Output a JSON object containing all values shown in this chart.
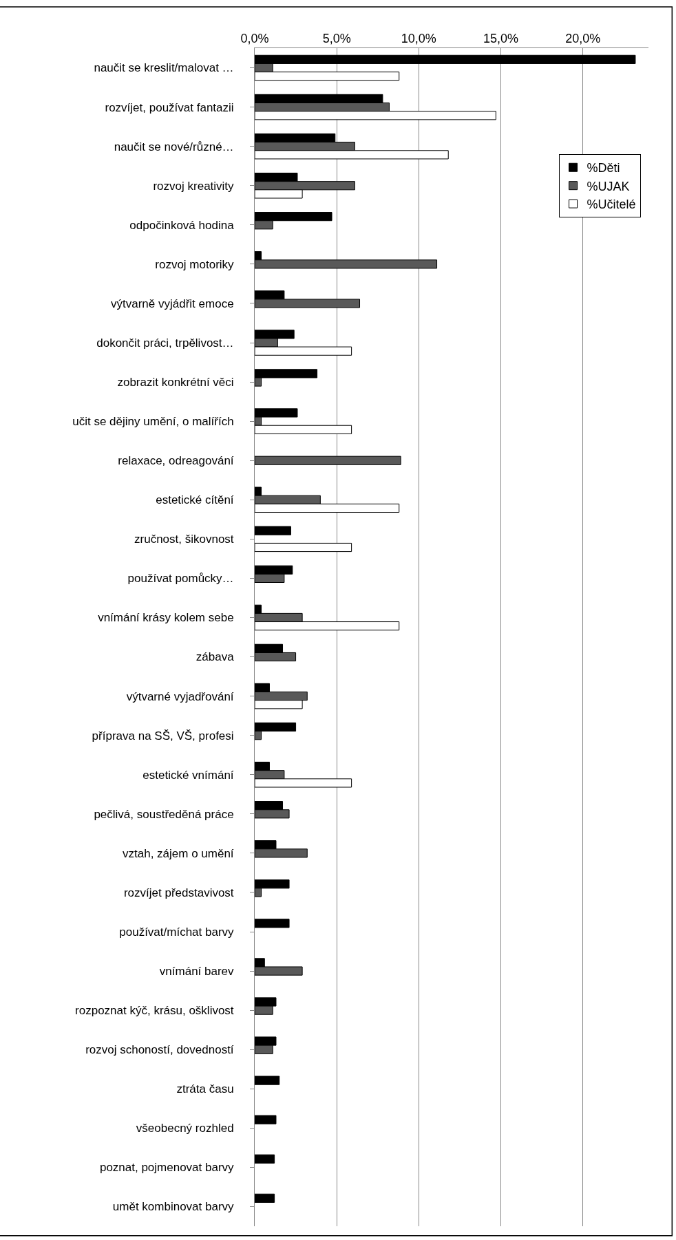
{
  "chart_data": {
    "type": "bar",
    "orientation": "horizontal",
    "categories": [
      "naučit se kreslit/malovat …",
      "rozvíjet, používat fantazii",
      "naučit se nové/různé…",
      "rozvoj kreativity",
      "odpočinková hodina",
      "rozvoj motoriky",
      "výtvarně vyjádřit emoce",
      "dokončit práci, trpělivost…",
      "zobrazit konkrétní věci",
      "učit se dějiny umění, o malířích",
      "relaxace, odreagování",
      "estetické cítění",
      "zručnost, šikovnost",
      "používat pomůcky…",
      "vnímání krásy kolem sebe",
      "zábava",
      "výtvarné vyjadřování",
      "příprava na SŠ, VŠ, profesi",
      "estetické vnímání",
      "pečlivá, soustředěná práce",
      "vztah, zájem o umění",
      "rozvíjet představivost",
      "používat/míchat barvy",
      "vnímání barev",
      "rozpoznat kýč, krásu, ošklivost",
      "rozvoj schoností, dovedností",
      "ztráta času",
      "všeobecný rozhled",
      "poznat, pojmenovat barvy",
      "umět kombinovat barvy"
    ],
    "series": [
      {
        "name": "%Děti",
        "color": "#000000",
        "values": [
          23.2,
          7.8,
          4.9,
          2.6,
          4.7,
          0.4,
          1.8,
          2.4,
          3.8,
          2.6,
          null,
          0.4,
          2.2,
          2.3,
          0.4,
          1.7,
          0.9,
          2.5,
          0.9,
          1.7,
          1.3,
          2.1,
          2.1,
          0.6,
          1.3,
          1.3,
          1.5,
          1.3,
          1.2,
          1.2
        ]
      },
      {
        "name": "%UJAK",
        "color": "#595959",
        "values": [
          1.1,
          8.2,
          6.1,
          6.1,
          1.1,
          11.1,
          6.4,
          1.4,
          0.4,
          0.4,
          8.9,
          4.0,
          null,
          1.8,
          2.9,
          2.5,
          3.2,
          0.4,
          1.8,
          2.1,
          3.2,
          0.4,
          null,
          2.9,
          1.1,
          1.1,
          null,
          null,
          null,
          null
        ]
      },
      {
        "name": "%Učitelé",
        "color": "#ffffff",
        "values": [
          8.8,
          14.7,
          11.8,
          2.9,
          null,
          null,
          null,
          5.9,
          null,
          5.9,
          null,
          8.8,
          5.9,
          null,
          8.8,
          null,
          2.9,
          null,
          5.9,
          null,
          null,
          null,
          null,
          null,
          null,
          null,
          null,
          null,
          null,
          null
        ]
      }
    ],
    "xlim": [
      0,
      24
    ],
    "xticks": [
      {
        "value": 0,
        "label": "0,0%"
      },
      {
        "value": 5,
        "label": "5,0%"
      },
      {
        "value": 10,
        "label": "10,0%"
      },
      {
        "value": 15,
        "label": "15,0%"
      },
      {
        "value": 20,
        "label": "20,0%"
      }
    ],
    "grid": "x",
    "legend": "top right"
  }
}
